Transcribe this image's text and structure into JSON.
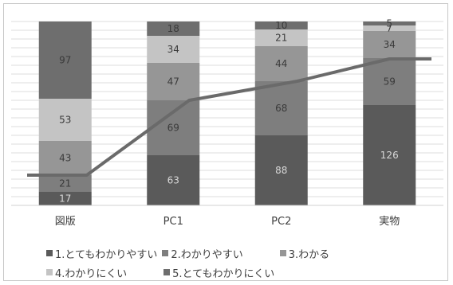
{
  "chart_data": {
    "type": "bar",
    "stacked": true,
    "categories": [
      "図版",
      "PC1",
      "PC2",
      "実物"
    ],
    "ylim": [
      0,
      231
    ],
    "grid": true,
    "legend_position": "bottom",
    "series": [
      {
        "name": "1.とてもわかりやすい",
        "values": [
          17,
          63,
          88,
          126
        ],
        "color": "#5a5a5a",
        "label_color": "#d8d8d8"
      },
      {
        "name": "2.わかりやすい",
        "values": [
          21,
          69,
          68,
          59
        ],
        "color": "#7e7e7e",
        "label_color": "#3a3a3a"
      },
      {
        "name": "3.わかる",
        "values": [
          43,
          47,
          44,
          34
        ],
        "color": "#969696",
        "label_color": "#3a3a3a"
      },
      {
        "name": "4.わかりにくい",
        "values": [
          53,
          34,
          21,
          7
        ],
        "color": "#c4c4c4",
        "label_color": "#3a3a3a"
      },
      {
        "name": "5.とてもわかりにくい",
        "values": [
          97,
          18,
          10,
          5
        ],
        "color": "#6e6e6e",
        "label_color": "#3a3a3a"
      }
    ],
    "line": {
      "values": [
        38,
        132,
        156,
        184
      ],
      "color": "#6a6a6a"
    }
  }
}
